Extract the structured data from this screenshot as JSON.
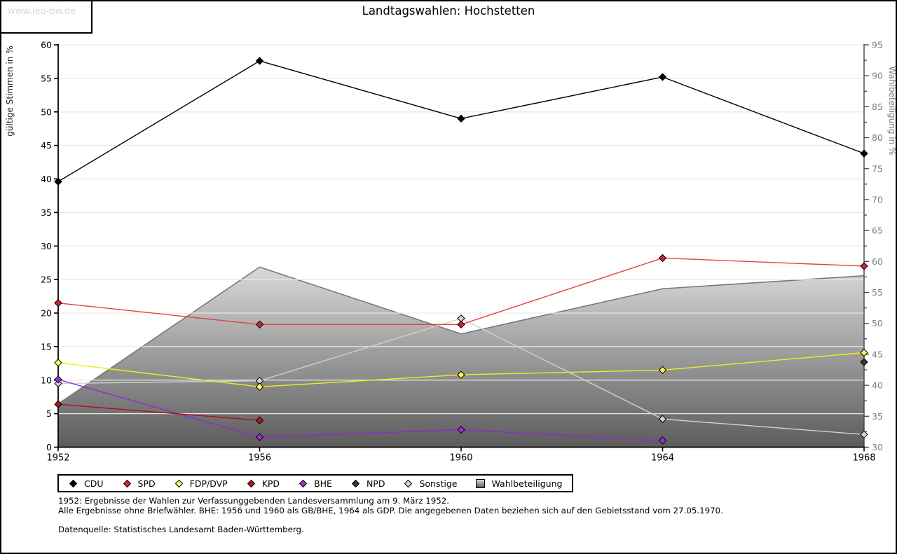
{
  "watermark": {
    "text": "www.leo-bw.de"
  },
  "title": "Landtagswahlen: Hochstetten",
  "footnotes": [
    "1952: Ergebnisse der Wahlen zur Verfassunggebenden Landesversammlung am 9. März 1952.",
    "Alle Ergebnisse ohne Briefwähler. BHE: 1956 und 1960 als GB/BHE, 1964 als GDP. Die angegebenen Daten beziehen sich auf den Gebietsstand vom 27.05.1970.",
    "Datenquelle: Statistisches Landesamt Baden-Württemberg."
  ],
  "colors": {
    "gridline": "#e9e9e9",
    "left_axis": "#000000",
    "right_axis_line": "#444444",
    "right_axis_text": "#7d7d7d",
    "area_stroke": "#787878",
    "area_gradient_top": "#d9d9d9",
    "area_gradient_bottom": "#5c5c5c"
  },
  "chart_data": {
    "type": "line",
    "title": "Landtagswahlen: Hochstetten",
    "x": [
      1952,
      1956,
      1960,
      1964,
      1968
    ],
    "left_axis": {
      "label": "gültige Stimmen in %",
      "min": 0,
      "max": 60,
      "tick_step": 5
    },
    "right_axis": {
      "label": "Wahlbeteiligung in %",
      "min": 30,
      "max": 95,
      "tick_step": 5,
      "minor_step": 2.5
    },
    "grid": true,
    "legend_position": "bottom",
    "series": [
      {
        "name": "CDU",
        "axis": "left",
        "style": "line",
        "line_color": "#000000",
        "marker_color": "#000000",
        "values": [
          39.6,
          57.6,
          49.0,
          55.2,
          43.8
        ]
      },
      {
        "name": "SPD",
        "axis": "left",
        "style": "line",
        "line_color": "#e04343",
        "marker_color": "#d42330",
        "values": [
          21.5,
          18.3,
          18.3,
          28.2,
          27.0
        ]
      },
      {
        "name": "FDP/DVP",
        "axis": "left",
        "style": "line",
        "line_color": "#f0ee1d",
        "marker_color": "#fdfd4a",
        "values": [
          12.6,
          9.0,
          10.8,
          11.5,
          14.1
        ]
      },
      {
        "name": "KPD",
        "axis": "left",
        "style": "line",
        "line_color": "#a8141f",
        "marker_color": "#b5121f",
        "values": [
          6.4,
          4.0,
          null,
          null,
          null
        ]
      },
      {
        "name": "BHE",
        "axis": "left",
        "style": "line",
        "line_color": "#8f2bd0",
        "marker_color": "#9c2fd6",
        "values": [
          10.1,
          1.5,
          2.6,
          1.0,
          null
        ]
      },
      {
        "name": "NPD",
        "axis": "left",
        "style": "line",
        "line_color": "#4a3424",
        "marker_color": "#4a3424",
        "values": [
          null,
          null,
          null,
          null,
          12.7
        ]
      },
      {
        "name": "Sonstige",
        "axis": "left",
        "style": "line",
        "line_color": "#d0d0d0",
        "marker_color": "#d4d4d4",
        "values": [
          9.5,
          9.9,
          19.2,
          4.2,
          1.9
        ]
      },
      {
        "name": "Wahlbeteiligung",
        "axis": "right",
        "style": "area",
        "line_color": "#787878",
        "marker_color": null,
        "values": [
          37.0,
          59.1,
          48.3,
          55.6,
          57.7
        ]
      }
    ],
    "z_order": [
      "Sonstige",
      "BHE",
      "KPD",
      "FDP/DVP",
      "SPD",
      "CDU",
      "NPD"
    ]
  }
}
